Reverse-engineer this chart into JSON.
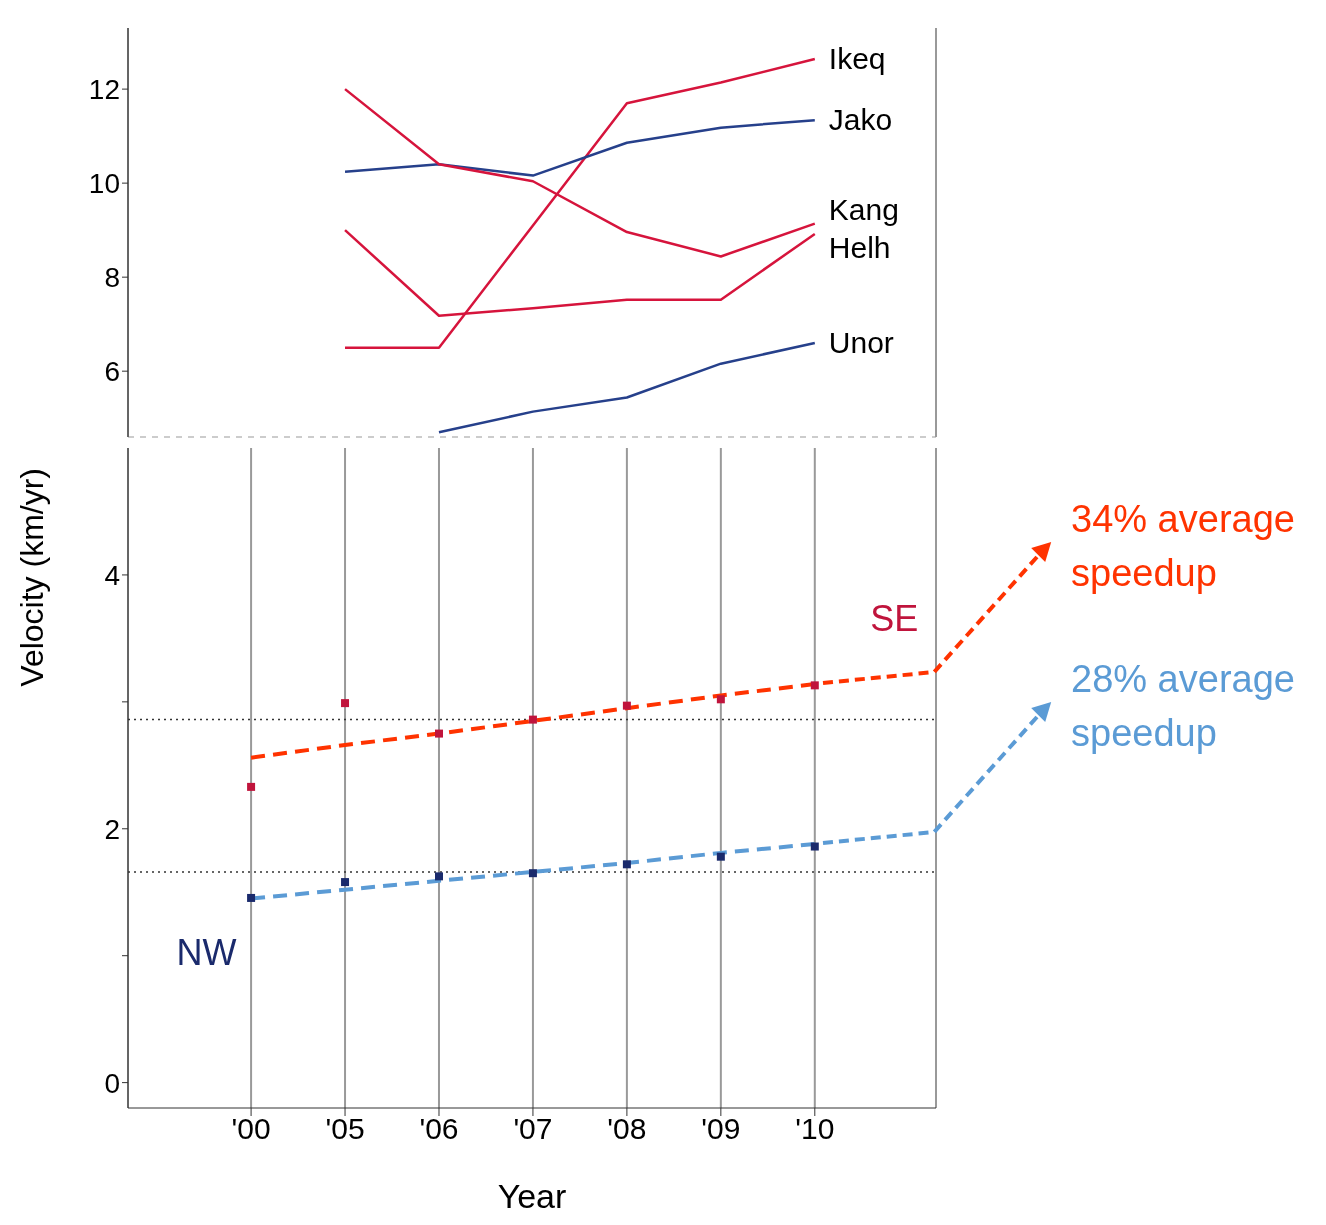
{
  "chart_data": [
    {
      "type": "line",
      "categories": [
        null,
        null,
        null,
        null,
        null,
        null,
        null
      ],
      "ylim": [
        4.6,
        13.3
      ],
      "yticks": [
        6,
        8,
        10,
        12
      ],
      "tick_labels": "y",
      "grid": "x",
      "series": [
        {
          "name": "Ikeq",
          "color": "#d6143c",
          "values": [
            null,
            6.5,
            6.5,
            9.1,
            11.7,
            12.14,
            12.64
          ]
        },
        {
          "name": "Jako",
          "color": "#26408b",
          "values": [
            null,
            10.24,
            10.4,
            10.16,
            10.86,
            11.18,
            11.34
          ]
        },
        {
          "name": "Kang",
          "color": "#d6143c",
          "values": [
            null,
            12.0,
            10.4,
            10.04,
            8.96,
            8.44,
            9.14
          ]
        },
        {
          "name": "Helh",
          "color": "#d6143c",
          "values": [
            null,
            9.0,
            7.18,
            7.34,
            7.52,
            7.52,
            8.92
          ]
        },
        {
          "name": "Unor",
          "color": "#26408b",
          "values": [
            null,
            null,
            4.7,
            5.14,
            5.44,
            6.16,
            6.6
          ]
        }
      ]
    },
    {
      "type": "scatter",
      "xlabel": "Year",
      "ylabel": "Velocity (km/yr)",
      "categories": [
        "'00",
        "'05",
        "'06",
        "'07",
        "'08",
        "'09",
        "'10"
      ],
      "ylim": [
        -0.2,
        5.0
      ],
      "yticks": [
        0,
        {
          "value": 1,
          "label": null
        },
        2,
        {
          "value": 3,
          "label": null
        },
        4
      ],
      "grid": "x",
      "series": [
        {
          "name": "NW",
          "color": "#1a2a6c",
          "marker": "square",
          "values": [
            1.455,
            1.58,
            1.625,
            1.65,
            1.72,
            1.78,
            1.86
          ]
        },
        {
          "name": "SE",
          "color": "#c0143c",
          "marker": "square",
          "values": [
            2.33,
            2.99,
            2.75,
            2.86,
            2.97,
            3.02,
            3.13
          ]
        },
        {
          "type": "line",
          "color": "#ff3300",
          "line_style": "dashed",
          "values": [
            2.56,
            2.66,
            2.75,
            2.85,
            2.95,
            3.05,
            3.14
          ]
        },
        {
          "type": "line",
          "color": "#5b9bd5",
          "line_style": "dashed",
          "values": [
            1.45,
            1.52,
            1.59,
            1.66,
            1.73,
            1.81,
            1.88
          ]
        }
      ],
      "ref_lines": [
        {
          "axis": "y",
          "value": 2.86,
          "line_style": "dotted",
          "color": "#333333"
        },
        {
          "axis": "y",
          "value": 1.66,
          "line_style": "dotted",
          "color": "#333333"
        }
      ],
      "annotations": [
        {
          "text": "34% average speedup",
          "x": "'10",
          "y": 3.14
        },
        {
          "text": "28% average speedup",
          "x": "'10",
          "y": 1.88
        }
      ]
    }
  ]
}
